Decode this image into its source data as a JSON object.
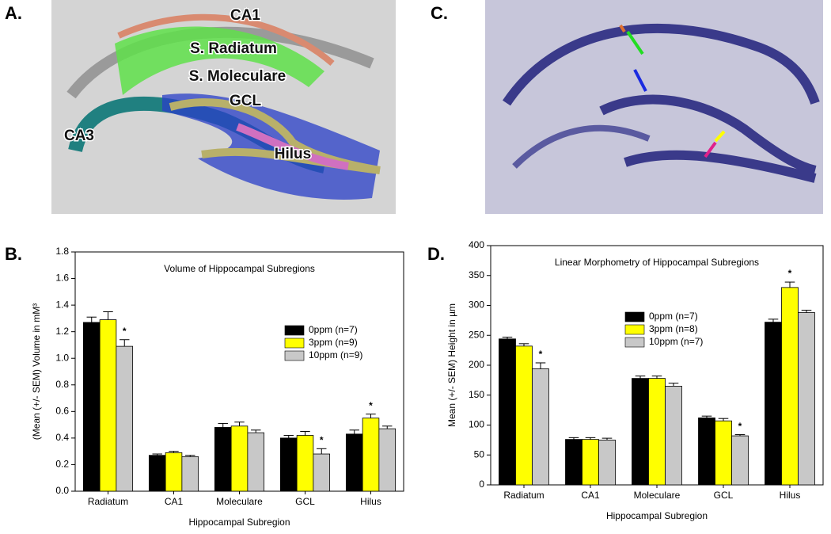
{
  "panel_labels": [
    "A.",
    "B.",
    "C.",
    "D."
  ],
  "image_labels": [
    "CA1",
    "S. Radiatum",
    "S. Moleculare",
    "GCL",
    "CA3",
    "Hilus"
  ],
  "chart_data": [
    {
      "type": "bar",
      "title": "Volume of Hippocampal Subregions",
      "x_label": "Hippocampal Subregion",
      "y_label": "(Mean (+/- SEM) Volume in mM³",
      "categories": [
        "Radiatum",
        "CA1",
        "Moleculare",
        "GCL",
        "Hilus"
      ],
      "ylim": [
        0,
        1.8
      ],
      "yticks": [
        {
          "value": 0,
          "label": "0.0"
        },
        0.2,
        0.4,
        0.6,
        0.8,
        {
          "value": 1,
          "label": "1.0"
        },
        1.2,
        1.4,
        1.6,
        1.8
      ],
      "legend": "center right",
      "series": [
        {
          "name": "0ppm (n=7)",
          "color": "#000000",
          "values": [
            1.27,
            0.27,
            0.48,
            0.4,
            0.43
          ],
          "errors": [
            0.04,
            0.01,
            0.03,
            0.02,
            0.03
          ],
          "annotations": [
            null,
            null,
            null,
            null,
            null
          ]
        },
        {
          "name": "3ppm (n=9)",
          "color": "#ffff00",
          "values": [
            1.29,
            0.29,
            0.49,
            0.42,
            0.55
          ],
          "errors": [
            0.06,
            0.01,
            0.03,
            0.03,
            0.03
          ],
          "annotations": [
            null,
            null,
            null,
            null,
            "*"
          ]
        },
        {
          "name": "10ppm (n=9)",
          "color": "#c8c8c8",
          "values": [
            1.09,
            0.26,
            0.44,
            0.28,
            0.47
          ],
          "errors": [
            0.05,
            0.01,
            0.02,
            0.04,
            0.02
          ],
          "annotations": [
            "*",
            null,
            null,
            "*",
            null
          ]
        }
      ]
    },
    {
      "type": "bar",
      "title": "Linear Morphometry of Hippocampal Subregions",
      "x_label": "Hippocampal Subregion",
      "y_label": "Mean (+/- SEM) Height in µm",
      "categories": [
        "Radiatum",
        "CA1",
        "Moleculare",
        "GCL",
        "Hilus"
      ],
      "ylim": [
        0,
        400
      ],
      "yticks": [
        0,
        50,
        100,
        150,
        200,
        250,
        300,
        350,
        400
      ],
      "legend": "upper center",
      "series": [
        {
          "name": "0ppm (n=7)",
          "color": "#000000",
          "values": [
            244,
            76,
            178,
            112,
            272
          ],
          "errors": [
            3,
            3,
            4,
            3,
            5
          ],
          "annotations": [
            null,
            null,
            null,
            null,
            null
          ]
        },
        {
          "name": "3ppm (n=8)",
          "color": "#ffff00",
          "values": [
            232,
            76,
            178,
            107,
            330
          ],
          "errors": [
            4,
            3,
            4,
            4,
            9
          ],
          "annotations": [
            null,
            null,
            null,
            null,
            "*"
          ]
        },
        {
          "name": "10ppm (n=7)",
          "color": "#c8c8c8",
          "values": [
            194,
            75,
            165,
            82,
            288
          ],
          "errors": [
            10,
            3,
            5,
            2,
            4
          ],
          "annotations": [
            "*",
            null,
            null,
            "*",
            null
          ]
        }
      ]
    }
  ]
}
